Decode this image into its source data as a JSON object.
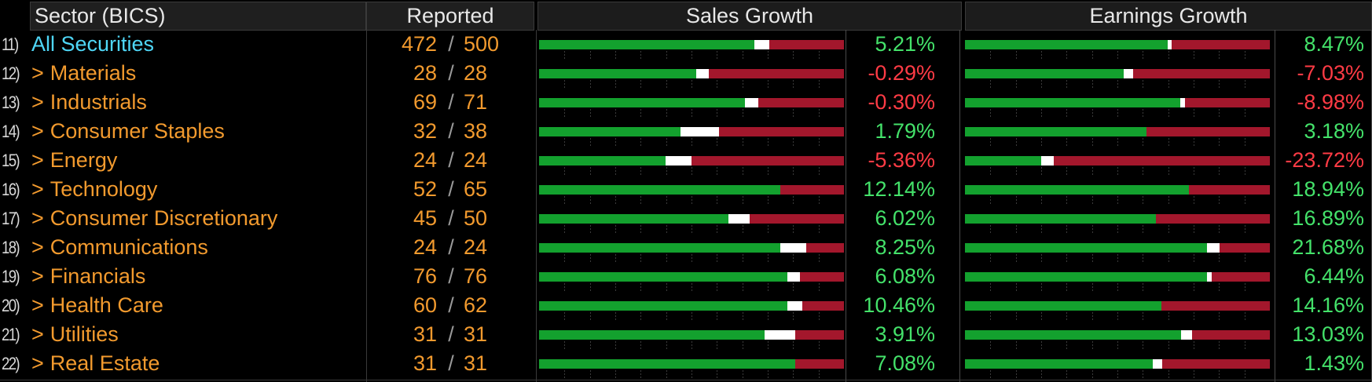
{
  "header": {
    "sector": "Sector (BICS)",
    "reported": "Reported",
    "sales_growth": "Sales Growth",
    "earnings_growth": "Earnings Growth"
  },
  "colors": {
    "orange": "#f29a2e",
    "cyan": "#4fd7f7",
    "green_bar": "#13a12e",
    "red_bar": "#a3172c",
    "positive": "#44e26a",
    "negative": "#ff3b45"
  },
  "rows": [
    {
      "num": "11)",
      "name": "All Securities",
      "all": true,
      "rep_a": "472",
      "rep_b": "500",
      "sales": "5.21%",
      "sales_sign": "pos",
      "earn": "8.47%",
      "earn_sign": "pos",
      "sales_bar": [
        0.705,
        0.05
      ],
      "earn_bar": [
        0.665,
        0.012
      ]
    },
    {
      "num": "12)",
      "name": "Materials",
      "all": false,
      "rep_a": "28",
      "rep_b": "28",
      "sales": "-0.29%",
      "sales_sign": "neg",
      "earn": "-7.03%",
      "earn_sign": "neg",
      "sales_bar": [
        0.515,
        0.04
      ],
      "earn_bar": [
        0.52,
        0.03
      ]
    },
    {
      "num": "13)",
      "name": "Industrials",
      "all": false,
      "rep_a": "69",
      "rep_b": "71",
      "sales": "-0.30%",
      "sales_sign": "neg",
      "earn": "-8.98%",
      "earn_sign": "neg",
      "sales_bar": [
        0.675,
        0.045
      ],
      "earn_bar": [
        0.705,
        0.015
      ]
    },
    {
      "num": "14)",
      "name": "Consumer Staples",
      "all": false,
      "rep_a": "32",
      "rep_b": "38",
      "sales": "1.79%",
      "sales_sign": "pos",
      "earn": "3.18%",
      "earn_sign": "pos",
      "sales_bar": [
        0.465,
        0.125
      ],
      "earn_bar": [
        0.595,
        0.0
      ]
    },
    {
      "num": "15)",
      "name": "Energy",
      "all": false,
      "rep_a": "24",
      "rep_b": "24",
      "sales": "-5.36%",
      "sales_sign": "neg",
      "earn": "-23.72%",
      "earn_sign": "neg",
      "sales_bar": [
        0.415,
        0.085
      ],
      "earn_bar": [
        0.25,
        0.04
      ]
    },
    {
      "num": "16)",
      "name": "Technology",
      "all": false,
      "rep_a": "52",
      "rep_b": "65",
      "sales": "12.14%",
      "sales_sign": "pos",
      "earn": "18.94%",
      "earn_sign": "pos",
      "sales_bar": [
        0.79,
        0.0
      ],
      "earn_bar": [
        0.735,
        0.0
      ]
    },
    {
      "num": "17)",
      "name": "Consumer Discretionary",
      "all": false,
      "rep_a": "45",
      "rep_b": "50",
      "sales": "6.02%",
      "sales_sign": "pos",
      "earn": "16.89%",
      "earn_sign": "pos",
      "sales_bar": [
        0.62,
        0.07
      ],
      "earn_bar": [
        0.625,
        0.0
      ]
    },
    {
      "num": "18)",
      "name": "Communications",
      "all": false,
      "rep_a": "24",
      "rep_b": "24",
      "sales": "8.25%",
      "sales_sign": "pos",
      "earn": "21.68%",
      "earn_sign": "pos",
      "sales_bar": [
        0.79,
        0.085
      ],
      "earn_bar": [
        0.795,
        0.04
      ]
    },
    {
      "num": "19)",
      "name": "Financials",
      "all": false,
      "rep_a": "76",
      "rep_b": "76",
      "sales": "6.08%",
      "sales_sign": "pos",
      "earn": "6.44%",
      "earn_sign": "pos",
      "sales_bar": [
        0.815,
        0.04
      ],
      "earn_bar": [
        0.795,
        0.015
      ]
    },
    {
      "num": "20)",
      "name": "Health Care",
      "all": false,
      "rep_a": "60",
      "rep_b": "62",
      "sales": "10.46%",
      "sales_sign": "pos",
      "earn": "14.16%",
      "earn_sign": "pos",
      "sales_bar": [
        0.815,
        0.05
      ],
      "earn_bar": [
        0.645,
        0.0
      ]
    },
    {
      "num": "21)",
      "name": "Utilities",
      "all": false,
      "rep_a": "31",
      "rep_b": "31",
      "sales": "3.91%",
      "sales_sign": "pos",
      "earn": "13.03%",
      "earn_sign": "pos",
      "sales_bar": [
        0.74,
        0.1
      ],
      "earn_bar": [
        0.71,
        0.035
      ]
    },
    {
      "num": "22)",
      "name": "Real Estate",
      "all": false,
      "rep_a": "31",
      "rep_b": "31",
      "sales": "7.08%",
      "sales_sign": "pos",
      "earn": "1.43%",
      "earn_sign": "pos",
      "sales_bar": [
        0.84,
        0.0
      ],
      "earn_bar": [
        0.615,
        0.03
      ]
    }
  ]
}
